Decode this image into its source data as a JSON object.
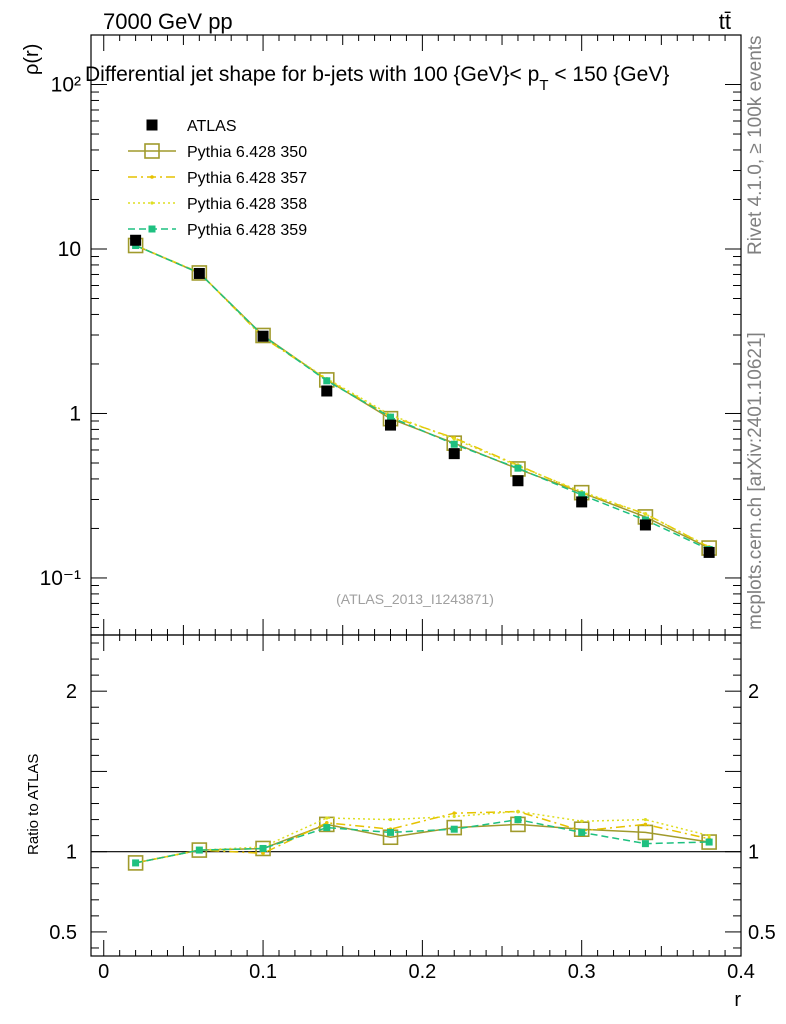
{
  "header": {
    "left_label": "7000 GeV pp",
    "right_label": "tt̄"
  },
  "side_labels": {
    "top": "Rivet 4.1.0, ≥ 100k events",
    "bottom": "mcplots.cern.ch [arXiv:2401.10621]"
  },
  "analysis_ref": "(ATLAS_2013_I1243871)",
  "legend_entries": [
    "ATLAS",
    "Pythia 6.428 350",
    "Pythia 6.428 357",
    "Pythia 6.428 358",
    "Pythia 6.428 359"
  ],
  "colors": {
    "data": "#000000",
    "p350": "#a09a2c",
    "p357": "#e6c200",
    "p358": "#dede22",
    "p359": "#1ec080"
  },
  "chart_data": [
    {
      "type": "line",
      "title": "Differential jet shape for b-jets with 100 {GeV}< p_T < 150 {GeV}",
      "title_parts": {
        "main": "Differential jet shape for b-jets with 100 {GeV}< p",
        "sub": "T",
        "rest": " < 150 {GeV}"
      },
      "ylabel": "ρ(r)",
      "yscale": "log",
      "ylim": [
        0.045,
        200
      ],
      "xlim": [
        -0.008,
        0.4
      ],
      "y_tick_labels": [
        "10⁻¹",
        "1",
        "10",
        "10²"
      ],
      "x": [
        0.02,
        0.06,
        0.1,
        0.14,
        0.18,
        0.22,
        0.26,
        0.3,
        0.34,
        0.38
      ],
      "series": [
        {
          "name": "ATLAS",
          "style": "data",
          "values": [
            11.3,
            7.1,
            2.95,
            1.37,
            0.85,
            0.57,
            0.39,
            0.29,
            0.21,
            0.143
          ]
        },
        {
          "name": "Pythia 6.428 350",
          "style": "p350",
          "values": [
            10.5,
            7.15,
            2.98,
            1.6,
            0.93,
            0.66,
            0.46,
            0.33,
            0.235,
            0.152
          ]
        },
        {
          "name": "Pythia 6.428 357",
          "style": "p357",
          "values": [
            10.5,
            7.2,
            2.9,
            1.61,
            0.96,
            0.71,
            0.485,
            0.33,
            0.245,
            0.154
          ]
        },
        {
          "name": "Pythia 6.428 358",
          "style": "p358",
          "values": [
            10.5,
            7.2,
            2.92,
            1.63,
            0.98,
            0.7,
            0.48,
            0.335,
            0.245,
            0.155
          ]
        },
        {
          "name": "Pythia 6.428 359",
          "style": "p359",
          "values": [
            10.5,
            7.15,
            2.97,
            1.58,
            0.95,
            0.65,
            0.465,
            0.32,
            0.225,
            0.149
          ]
        }
      ]
    },
    {
      "type": "line",
      "ylabel": "Ratio to ATLAS",
      "xlabel": "r",
      "ylim": [
        0.35,
        2.35
      ],
      "xlim": [
        -0.008,
        0.4
      ],
      "y_tick_labels": [
        "0.5",
        "1",
        "2"
      ],
      "x_tick_labels": [
        "0",
        "0.1",
        "0.2",
        "0.3",
        "0.4"
      ],
      "x": [
        0.02,
        0.06,
        0.1,
        0.14,
        0.18,
        0.22,
        0.26,
        0.3,
        0.34,
        0.38
      ],
      "series": [
        {
          "name": "Pythia 6.428 350",
          "style": "p350",
          "values": [
            0.93,
            1.01,
            1.02,
            1.17,
            1.09,
            1.15,
            1.17,
            1.14,
            1.12,
            1.06
          ]
        },
        {
          "name": "Pythia 6.428 357",
          "style": "p357",
          "values": [
            0.93,
            1.01,
            0.99,
            1.18,
            1.14,
            1.24,
            1.25,
            1.13,
            1.17,
            1.08
          ]
        },
        {
          "name": "Pythia 6.428 358",
          "style": "p358",
          "values": [
            0.93,
            1.01,
            1.03,
            1.21,
            1.2,
            1.22,
            1.25,
            1.19,
            1.2,
            1.1
          ]
        },
        {
          "name": "Pythia 6.428 359",
          "style": "p359",
          "values": [
            0.93,
            1.01,
            1.02,
            1.15,
            1.12,
            1.14,
            1.2,
            1.12,
            1.05,
            1.06
          ]
        }
      ]
    }
  ]
}
